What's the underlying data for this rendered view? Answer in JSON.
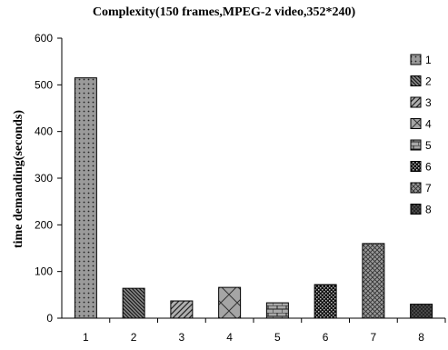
{
  "chart_data": {
    "type": "bar",
    "title": "Complexity(150 frames,MPEG-2 video,352*240)",
    "xlabel": "",
    "ylabel": "time demanding(seconds)",
    "categories": [
      "1",
      "2",
      "3",
      "4",
      "5",
      "6",
      "7",
      "8"
    ],
    "values": [
      515,
      64,
      37,
      66,
      33,
      72,
      160,
      30
    ],
    "ylim": [
      0,
      600
    ],
    "yticks": [
      0,
      100,
      200,
      300,
      400,
      500,
      600
    ],
    "grid": false,
    "legend": {
      "placement": "right",
      "entries": [
        "1",
        "2",
        "3",
        "4",
        "5",
        "6",
        "7",
        "8"
      ]
    },
    "patterns": [
      "dots",
      "diag-dense",
      "diag",
      "diag-cross",
      "brick",
      "checker",
      "crosshatch",
      "grid-dark"
    ]
  }
}
